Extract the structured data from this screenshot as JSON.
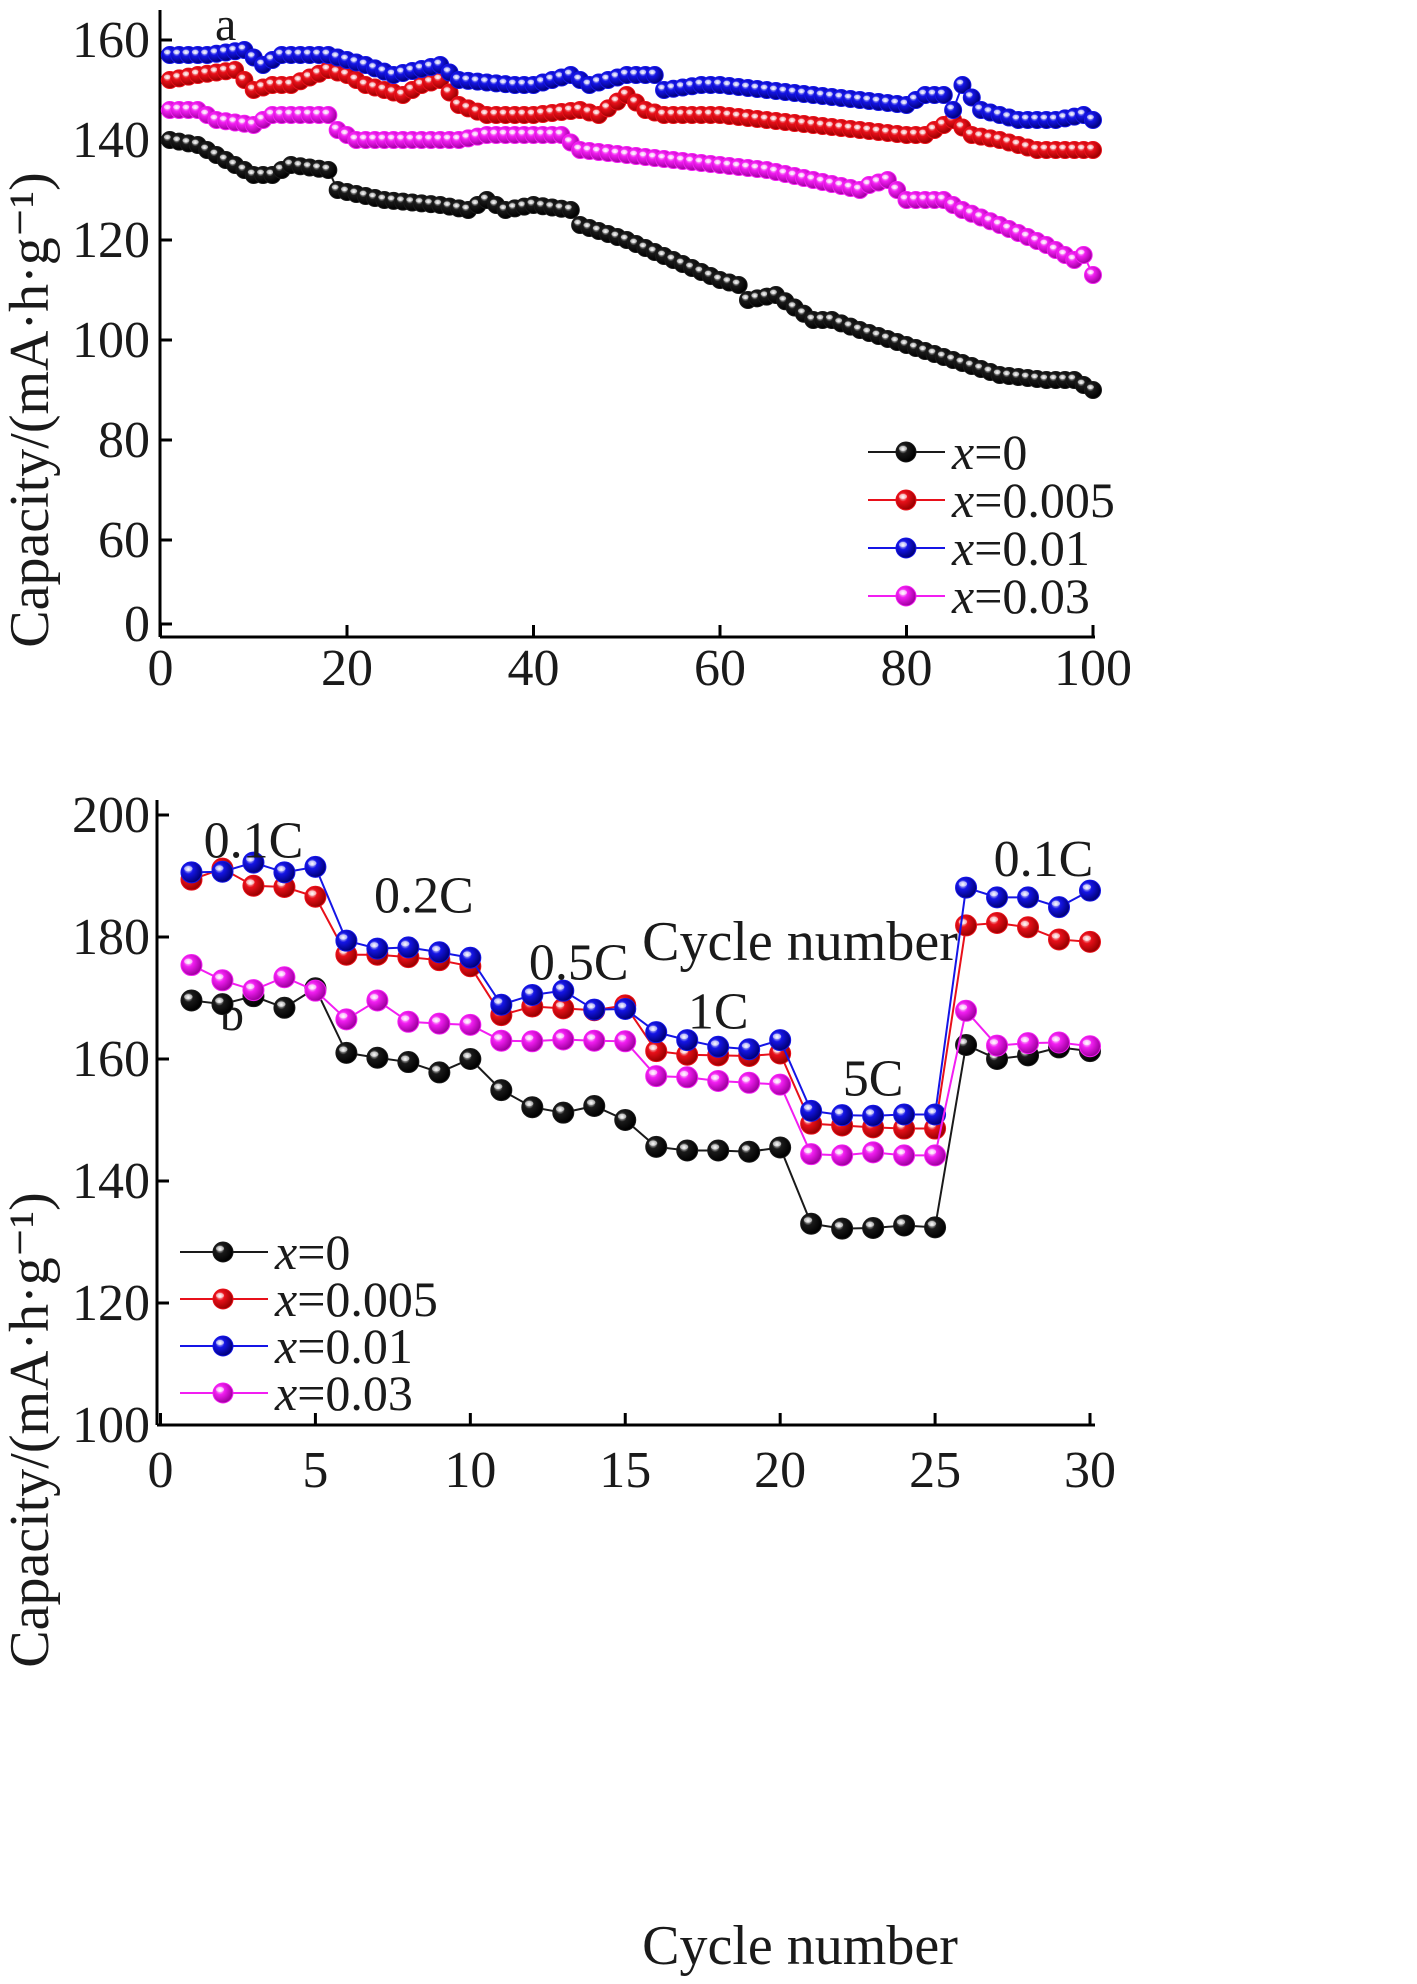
{
  "chart_data": [
    {
      "panel": "a",
      "type": "scatter",
      "xlabel": "Cycle number",
      "ylabel": "Capacity/(mA·h·g⁻¹)",
      "xlim": [
        0,
        100
      ],
      "ylim": [
        0,
        160
      ],
      "xticks": [
        "0",
        "20",
        "40",
        "60",
        "80",
        "100"
      ],
      "yticks": [
        "0",
        "60",
        "80",
        "100",
        "120",
        "140",
        "160"
      ],
      "axis_break": "y between 0 and 60",
      "legend_placement": "bottom-right",
      "series": [
        {
          "name": "x=0",
          "label_var": "x",
          "label_val": "=0",
          "color": "#1a1a1a",
          "anchors": [
            [
              1,
              140
            ],
            [
              4,
              139
            ],
            [
              7,
              136
            ],
            [
              10,
              133
            ],
            [
              12,
              133
            ],
            [
              14,
              135
            ],
            [
              18,
              134
            ],
            [
              19,
              130
            ],
            [
              24,
              128
            ],
            [
              30,
              127
            ],
            [
              33,
              126
            ],
            [
              35,
              128
            ],
            [
              37,
              126
            ],
            [
              40,
              127
            ],
            [
              44,
              126
            ],
            [
              45,
              123
            ],
            [
              50,
              120
            ],
            [
              55,
              116
            ],
            [
              60,
              112
            ],
            [
              62,
              111
            ],
            [
              63,
              108
            ],
            [
              66,
              109
            ],
            [
              70,
              104
            ],
            [
              72,
              104
            ],
            [
              75,
              102
            ],
            [
              80,
              99
            ],
            [
              85,
              96
            ],
            [
              90,
              93
            ],
            [
              95,
              92
            ],
            [
              98,
              92
            ],
            [
              100,
              90
            ]
          ]
        },
        {
          "name": "x=0.005",
          "label_var": "x",
          "label_val": "=0.005",
          "color": "#e8101a",
          "anchors": [
            [
              1,
              152
            ],
            [
              4,
              153
            ],
            [
              8,
              154
            ],
            [
              10,
              150
            ],
            [
              12,
              151
            ],
            [
              14,
              151
            ],
            [
              18,
              154
            ],
            [
              20,
              153
            ],
            [
              22,
              151
            ],
            [
              26,
              149
            ],
            [
              28,
              151
            ],
            [
              30,
              152
            ],
            [
              32,
              147
            ],
            [
              35,
              145
            ],
            [
              40,
              145
            ],
            [
              45,
              146
            ],
            [
              47,
              145
            ],
            [
              50,
              149
            ],
            [
              52,
              146
            ],
            [
              54,
              145
            ],
            [
              58,
              145
            ],
            [
              60,
              145
            ],
            [
              65,
              144
            ],
            [
              70,
              143
            ],
            [
              75,
              142
            ],
            [
              80,
              141
            ],
            [
              82,
              141
            ],
            [
              85,
              144
            ],
            [
              87,
              141
            ],
            [
              90,
              140
            ],
            [
              94,
              138
            ],
            [
              100,
              138
            ]
          ]
        },
        {
          "name": "x=0.01",
          "label_var": "x",
          "label_val": "=0.01",
          "color": "#1515e6",
          "anchors": [
            [
              1,
              157
            ],
            [
              5,
              157
            ],
            [
              9,
              158
            ],
            [
              11,
              155
            ],
            [
              13,
              157
            ],
            [
              18,
              157
            ],
            [
              22,
              155
            ],
            [
              25,
              153
            ],
            [
              30,
              155
            ],
            [
              32,
              152
            ],
            [
              38,
              151
            ],
            [
              40,
              151
            ],
            [
              44,
              153
            ],
            [
              46,
              151
            ],
            [
              50,
              153
            ],
            [
              53,
              153
            ],
            [
              54,
              150
            ],
            [
              58,
              151
            ],
            [
              60,
              151
            ],
            [
              65,
              150
            ],
            [
              70,
              149
            ],
            [
              75,
              148
            ],
            [
              80,
              147
            ],
            [
              82,
              149
            ],
            [
              84,
              149
            ],
            [
              85,
              146
            ],
            [
              86,
              151
            ],
            [
              88,
              146
            ],
            [
              92,
              144
            ],
            [
              96,
              144
            ],
            [
              99,
              145
            ],
            [
              100,
              144
            ]
          ]
        },
        {
          "name": "x=0.03",
          "label_var": "x",
          "label_val": "=0.03",
          "color": "#f21ef2",
          "anchors": [
            [
              1,
              146
            ],
            [
              4,
              146
            ],
            [
              6,
              144
            ],
            [
              10,
              143
            ],
            [
              12,
              145
            ],
            [
              18,
              145
            ],
            [
              19,
              142
            ],
            [
              21,
              140
            ],
            [
              25,
              140
            ],
            [
              30,
              140
            ],
            [
              32,
              140
            ],
            [
              35,
              141
            ],
            [
              40,
              141
            ],
            [
              43,
              141
            ],
            [
              45,
              138
            ],
            [
              50,
              137
            ],
            [
              55,
              136
            ],
            [
              60,
              135
            ],
            [
              65,
              134
            ],
            [
              70,
              132
            ],
            [
              75,
              130
            ],
            [
              76,
              131
            ],
            [
              78,
              132
            ],
            [
              80,
              128
            ],
            [
              84,
              128
            ],
            [
              86,
              126
            ],
            [
              90,
              123
            ],
            [
              95,
              119
            ],
            [
              98,
              116
            ],
            [
              99,
              117
            ],
            [
              100,
              113
            ]
          ]
        }
      ]
    },
    {
      "panel": "b",
      "type": "line",
      "xlabel": "Cycle number",
      "ylabel": "Capacity/(mA·h·g⁻¹)",
      "xlim": [
        0,
        30
      ],
      "ylim": [
        100,
        200
      ],
      "xticks": [
        "0",
        "5",
        "10",
        "15",
        "20",
        "25",
        "30"
      ],
      "yticks": [
        "100",
        "120",
        "140",
        "160",
        "180",
        "200"
      ],
      "legend_placement": "bottom-left",
      "annotations": [
        {
          "text": "0.1C",
          "x": 3,
          "y": 193
        },
        {
          "text": "0.2C",
          "x": 8.5,
          "y": 184
        },
        {
          "text": "0.5C",
          "x": 13.5,
          "y": 173
        },
        {
          "text": "1C",
          "x": 18,
          "y": 165
        },
        {
          "text": "5C",
          "x": 23,
          "y": 154
        },
        {
          "text": "0.1C",
          "x": 28.5,
          "y": 190
        }
      ],
      "x": [
        1,
        2,
        3,
        4,
        5,
        6,
        7,
        8,
        9,
        10,
        11,
        12,
        13,
        14,
        15,
        16,
        17,
        18,
        19,
        20,
        21,
        22,
        23,
        24,
        25,
        26,
        27,
        28,
        29,
        30
      ],
      "series": [
        {
          "name": "x=0",
          "label_var": "x",
          "label_val": "=0",
          "color": "#1a1a1a",
          "values": [
            169.6,
            169.0,
            170.3,
            168.4,
            171.6,
            161.0,
            160.2,
            159.5,
            157.8,
            160.0,
            154.9,
            152.1,
            151.2,
            152.3,
            150.0,
            145.6,
            145.0,
            145.0,
            144.8,
            145.5,
            133.0,
            132.2,
            132.3,
            132.7,
            132.4,
            162.3,
            160.0,
            160.6,
            161.9,
            161.3
          ]
        },
        {
          "name": "x=0.005",
          "label_var": "x",
          "label_val": "=0.005",
          "color": "#e8101a",
          "values": [
            189.4,
            191.2,
            188.4,
            188.2,
            186.6,
            177.1,
            177.1,
            176.7,
            176.2,
            175.2,
            167.2,
            168.6,
            168.3,
            168.0,
            168.8,
            161.3,
            160.7,
            160.6,
            160.5,
            160.9,
            149.4,
            149.1,
            148.8,
            148.6,
            148.6,
            181.9,
            182.3,
            181.6,
            179.6,
            179.2
          ]
        },
        {
          "name": "x=0.01",
          "label_var": "x",
          "label_val": "=0.01",
          "color": "#1515e6",
          "values": [
            190.6,
            190.7,
            192.2,
            190.6,
            191.5,
            179.4,
            178.1,
            178.3,
            177.5,
            176.6,
            168.9,
            170.5,
            171.2,
            168.1,
            168.2,
            164.4,
            163.1,
            162.0,
            161.6,
            163.1,
            151.5,
            150.8,
            150.7,
            150.9,
            150.9,
            188.1,
            186.5,
            186.5,
            184.9,
            187.6
          ]
        },
        {
          "name": "x=0.03",
          "label_var": "x",
          "label_val": "=0.03",
          "color": "#f21ef2",
          "values": [
            175.4,
            172.9,
            171.3,
            173.4,
            171.2,
            166.5,
            169.6,
            166.1,
            165.8,
            165.6,
            163.0,
            162.9,
            163.2,
            163.0,
            162.9,
            157.2,
            157.0,
            156.4,
            156.1,
            155.8,
            144.4,
            144.2,
            144.7,
            144.2,
            144.2,
            167.9,
            162.2,
            162.6,
            162.7,
            162.1
          ]
        }
      ]
    }
  ]
}
